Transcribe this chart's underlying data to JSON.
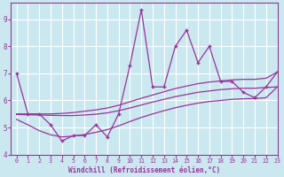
{
  "title": "",
  "xlabel": "Windchill (Refroidissement éolien,°C)",
  "ylabel": "",
  "bg_color": "#cbe8f0",
  "line_color": "#993399",
  "grid_color": "#ffffff",
  "spine_color": "#993399",
  "xlim": [
    -0.5,
    23
  ],
  "ylim": [
    4,
    9.6
  ],
  "yticks": [
    4,
    5,
    6,
    7,
    8,
    9
  ],
  "xticks": [
    0,
    1,
    2,
    3,
    4,
    5,
    6,
    7,
    8,
    9,
    10,
    11,
    12,
    13,
    14,
    15,
    16,
    17,
    18,
    19,
    20,
    21,
    22,
    23
  ],
  "series": {
    "main": [
      7.0,
      5.5,
      5.5,
      5.1,
      4.5,
      4.7,
      4.7,
      5.1,
      4.65,
      5.5,
      7.3,
      9.35,
      6.5,
      6.5,
      8.0,
      8.6,
      7.4,
      8.0,
      6.7,
      6.7,
      6.3,
      6.1,
      6.5,
      7.05
    ],
    "smooth_top": [
      5.5,
      5.5,
      5.5,
      5.5,
      5.52,
      5.55,
      5.6,
      5.65,
      5.72,
      5.82,
      5.95,
      6.08,
      6.2,
      6.32,
      6.44,
      6.53,
      6.62,
      6.68,
      6.72,
      6.76,
      6.78,
      6.78,
      6.82,
      7.05
    ],
    "smooth_mid": [
      5.48,
      5.47,
      5.46,
      5.45,
      5.44,
      5.44,
      5.46,
      5.49,
      5.54,
      5.62,
      5.72,
      5.83,
      5.94,
      6.04,
      6.14,
      6.22,
      6.3,
      6.35,
      6.4,
      6.43,
      6.45,
      6.45,
      6.48,
      6.5
    ],
    "smooth_bot": [
      5.3,
      5.1,
      4.88,
      4.73,
      4.65,
      4.68,
      4.74,
      4.82,
      4.92,
      5.06,
      5.22,
      5.37,
      5.5,
      5.62,
      5.73,
      5.82,
      5.9,
      5.96,
      6.0,
      6.04,
      6.06,
      6.07,
      6.1,
      6.5
    ]
  }
}
